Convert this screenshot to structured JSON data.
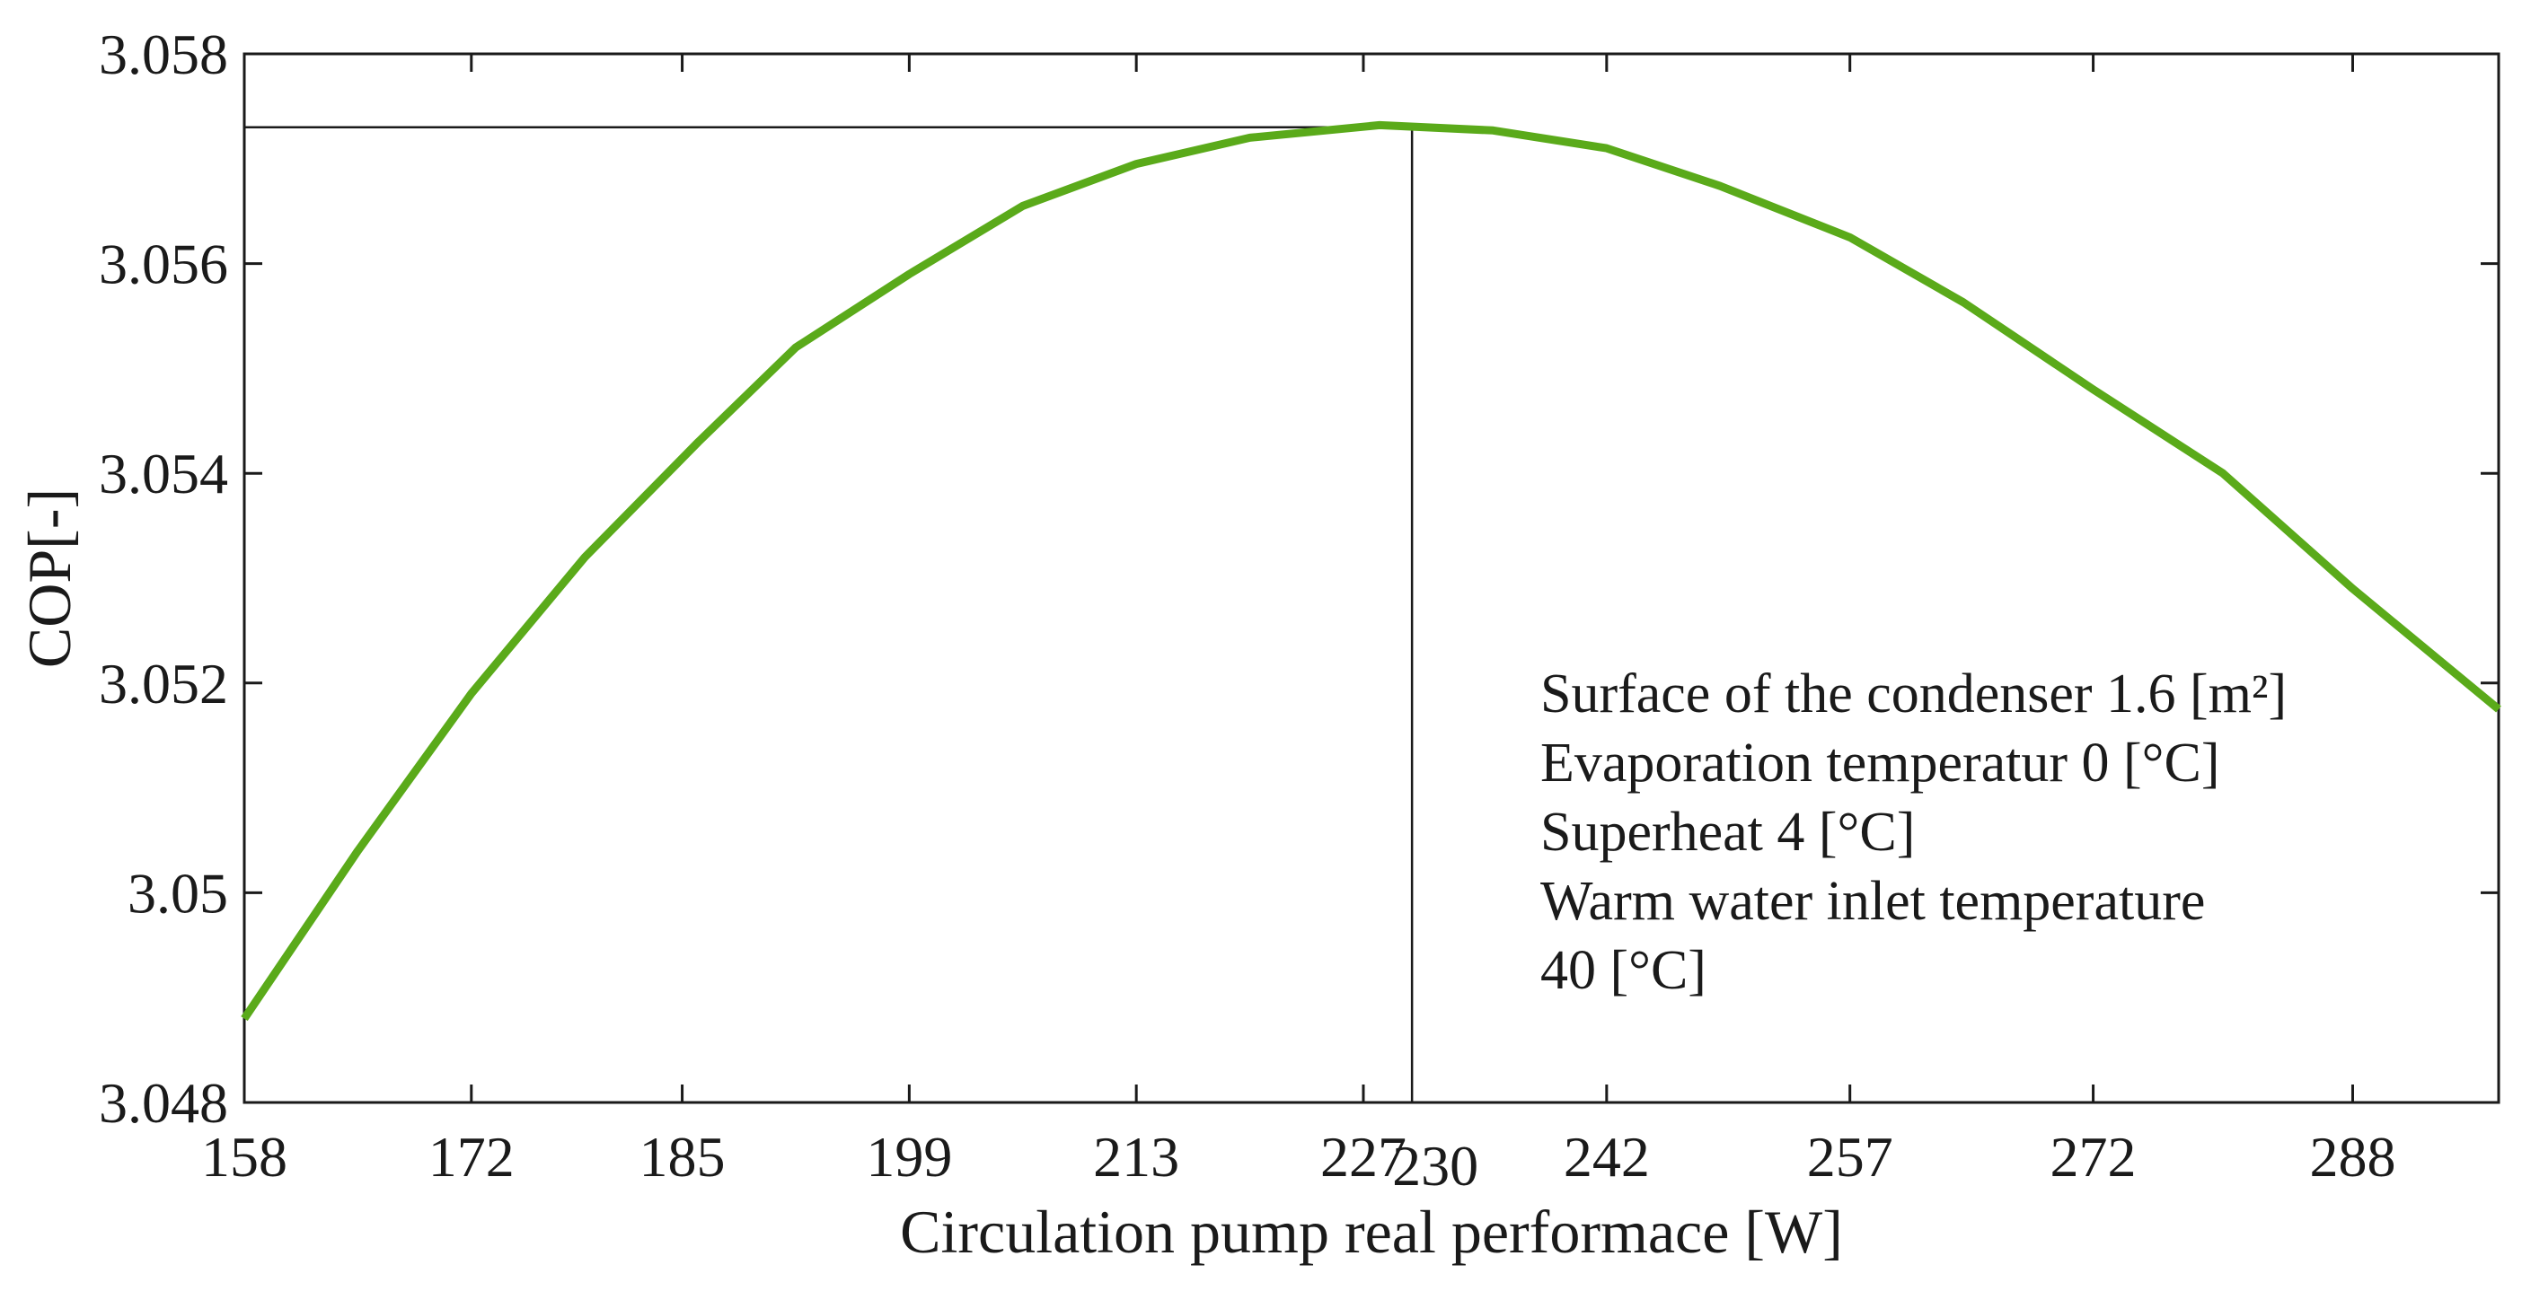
{
  "chart_data": {
    "type": "line",
    "title": "",
    "xlabel": "Circulation pump real performace [W]",
    "ylabel": "COP[-]",
    "xlim": [
      158,
      297
    ],
    "ylim": [
      3.048,
      3.058
    ],
    "x_ticks": [
      158,
      172,
      185,
      199,
      213,
      227,
      242,
      257,
      272,
      288
    ],
    "x_tick_labels": [
      "158",
      "172",
      "185",
      "199",
      "213",
      "227",
      "242",
      "257",
      "272",
      "288"
    ],
    "y_ticks": [
      3.048,
      3.05,
      3.052,
      3.054,
      3.056,
      3.058
    ],
    "y_tick_labels": [
      "3.048",
      "3.05",
      "3.052",
      "3.054",
      "3.056",
      "3.058"
    ],
    "grid": false,
    "series": [
      {
        "name": "COP",
        "color": "#5aaa1a",
        "x": [
          158,
          165,
          172,
          179,
          186,
          192,
          199,
          206,
          213,
          220,
          228,
          235,
          242,
          249,
          257,
          264,
          272,
          280,
          288,
          297
        ],
        "y": [
          3.0488,
          3.0504,
          3.0519,
          3.0532,
          3.0543,
          3.0552,
          3.0559,
          3.05655,
          3.05695,
          3.0572,
          3.05732,
          3.05727,
          3.0571,
          3.05674,
          3.05625,
          3.05563,
          3.0548,
          3.054,
          3.0529,
          3.05175
        ]
      }
    ],
    "optimum": {
      "x": 230,
      "y": 3.0573,
      "label": "230",
      "line_color": "#1a1a1a"
    },
    "annotation_lines": [
      "Surface of the condenser 1.6 [m²]",
      "Evaporation temperatur 0 [°C]",
      "Superheat 4 [°C]",
      "Warm water inlet temperature",
      "40 [°C]"
    ]
  }
}
